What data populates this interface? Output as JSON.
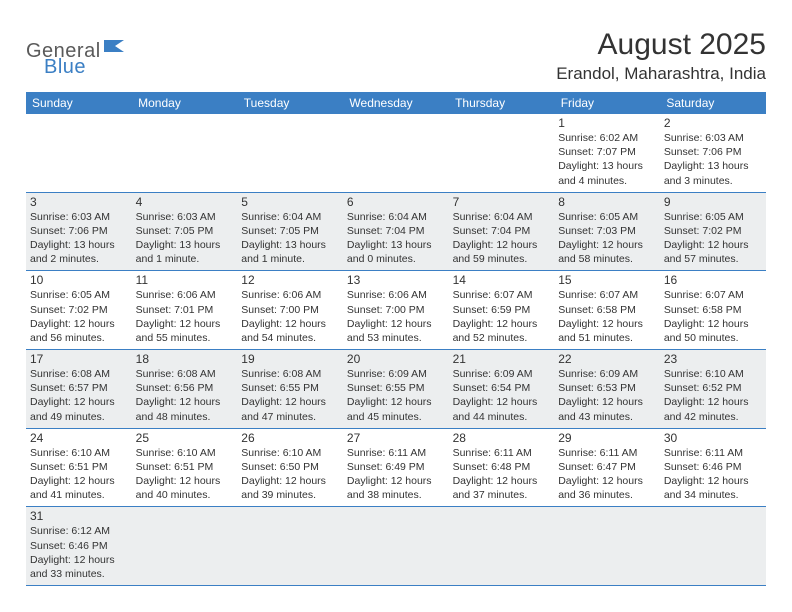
{
  "logo": {
    "part1": "General",
    "part2": "Blue"
  },
  "title": "August 2025",
  "location": "Erandol, Maharashtra, India",
  "colors": {
    "header_bg": "#3b7fc4",
    "header_text": "#ffffff",
    "row_alt_bg": "#eceeef",
    "border": "#3b7fc4",
    "text": "#333333",
    "logo_gray": "#5a5a5a",
    "logo_blue": "#3b7fc4"
  },
  "weekdays": [
    "Sunday",
    "Monday",
    "Tuesday",
    "Wednesday",
    "Thursday",
    "Friday",
    "Saturday"
  ],
  "weeks": [
    [
      null,
      null,
      null,
      null,
      null,
      {
        "n": "1",
        "sr": "6:02 AM",
        "ss": "7:07 PM",
        "dl": "13 hours and 4 minutes."
      },
      {
        "n": "2",
        "sr": "6:03 AM",
        "ss": "7:06 PM",
        "dl": "13 hours and 3 minutes."
      }
    ],
    [
      {
        "n": "3",
        "sr": "6:03 AM",
        "ss": "7:06 PM",
        "dl": "13 hours and 2 minutes."
      },
      {
        "n": "4",
        "sr": "6:03 AM",
        "ss": "7:05 PM",
        "dl": "13 hours and 1 minute."
      },
      {
        "n": "5",
        "sr": "6:04 AM",
        "ss": "7:05 PM",
        "dl": "13 hours and 1 minute."
      },
      {
        "n": "6",
        "sr": "6:04 AM",
        "ss": "7:04 PM",
        "dl": "13 hours and 0 minutes."
      },
      {
        "n": "7",
        "sr": "6:04 AM",
        "ss": "7:04 PM",
        "dl": "12 hours and 59 minutes."
      },
      {
        "n": "8",
        "sr": "6:05 AM",
        "ss": "7:03 PM",
        "dl": "12 hours and 58 minutes."
      },
      {
        "n": "9",
        "sr": "6:05 AM",
        "ss": "7:02 PM",
        "dl": "12 hours and 57 minutes."
      }
    ],
    [
      {
        "n": "10",
        "sr": "6:05 AM",
        "ss": "7:02 PM",
        "dl": "12 hours and 56 minutes."
      },
      {
        "n": "11",
        "sr": "6:06 AM",
        "ss": "7:01 PM",
        "dl": "12 hours and 55 minutes."
      },
      {
        "n": "12",
        "sr": "6:06 AM",
        "ss": "7:00 PM",
        "dl": "12 hours and 54 minutes."
      },
      {
        "n": "13",
        "sr": "6:06 AM",
        "ss": "7:00 PM",
        "dl": "12 hours and 53 minutes."
      },
      {
        "n": "14",
        "sr": "6:07 AM",
        "ss": "6:59 PM",
        "dl": "12 hours and 52 minutes."
      },
      {
        "n": "15",
        "sr": "6:07 AM",
        "ss": "6:58 PM",
        "dl": "12 hours and 51 minutes."
      },
      {
        "n": "16",
        "sr": "6:07 AM",
        "ss": "6:58 PM",
        "dl": "12 hours and 50 minutes."
      }
    ],
    [
      {
        "n": "17",
        "sr": "6:08 AM",
        "ss": "6:57 PM",
        "dl": "12 hours and 49 minutes."
      },
      {
        "n": "18",
        "sr": "6:08 AM",
        "ss": "6:56 PM",
        "dl": "12 hours and 48 minutes."
      },
      {
        "n": "19",
        "sr": "6:08 AM",
        "ss": "6:55 PM",
        "dl": "12 hours and 47 minutes."
      },
      {
        "n": "20",
        "sr": "6:09 AM",
        "ss": "6:55 PM",
        "dl": "12 hours and 45 minutes."
      },
      {
        "n": "21",
        "sr": "6:09 AM",
        "ss": "6:54 PM",
        "dl": "12 hours and 44 minutes."
      },
      {
        "n": "22",
        "sr": "6:09 AM",
        "ss": "6:53 PM",
        "dl": "12 hours and 43 minutes."
      },
      {
        "n": "23",
        "sr": "6:10 AM",
        "ss": "6:52 PM",
        "dl": "12 hours and 42 minutes."
      }
    ],
    [
      {
        "n": "24",
        "sr": "6:10 AM",
        "ss": "6:51 PM",
        "dl": "12 hours and 41 minutes."
      },
      {
        "n": "25",
        "sr": "6:10 AM",
        "ss": "6:51 PM",
        "dl": "12 hours and 40 minutes."
      },
      {
        "n": "26",
        "sr": "6:10 AM",
        "ss": "6:50 PM",
        "dl": "12 hours and 39 minutes."
      },
      {
        "n": "27",
        "sr": "6:11 AM",
        "ss": "6:49 PM",
        "dl": "12 hours and 38 minutes."
      },
      {
        "n": "28",
        "sr": "6:11 AM",
        "ss": "6:48 PM",
        "dl": "12 hours and 37 minutes."
      },
      {
        "n": "29",
        "sr": "6:11 AM",
        "ss": "6:47 PM",
        "dl": "12 hours and 36 minutes."
      },
      {
        "n": "30",
        "sr": "6:11 AM",
        "ss": "6:46 PM",
        "dl": "12 hours and 34 minutes."
      }
    ],
    [
      {
        "n": "31",
        "sr": "6:12 AM",
        "ss": "6:46 PM",
        "dl": "12 hours and 33 minutes."
      },
      null,
      null,
      null,
      null,
      null,
      null
    ]
  ],
  "labels": {
    "sunrise": "Sunrise:",
    "sunset": "Sunset:",
    "daylight": "Daylight:"
  }
}
